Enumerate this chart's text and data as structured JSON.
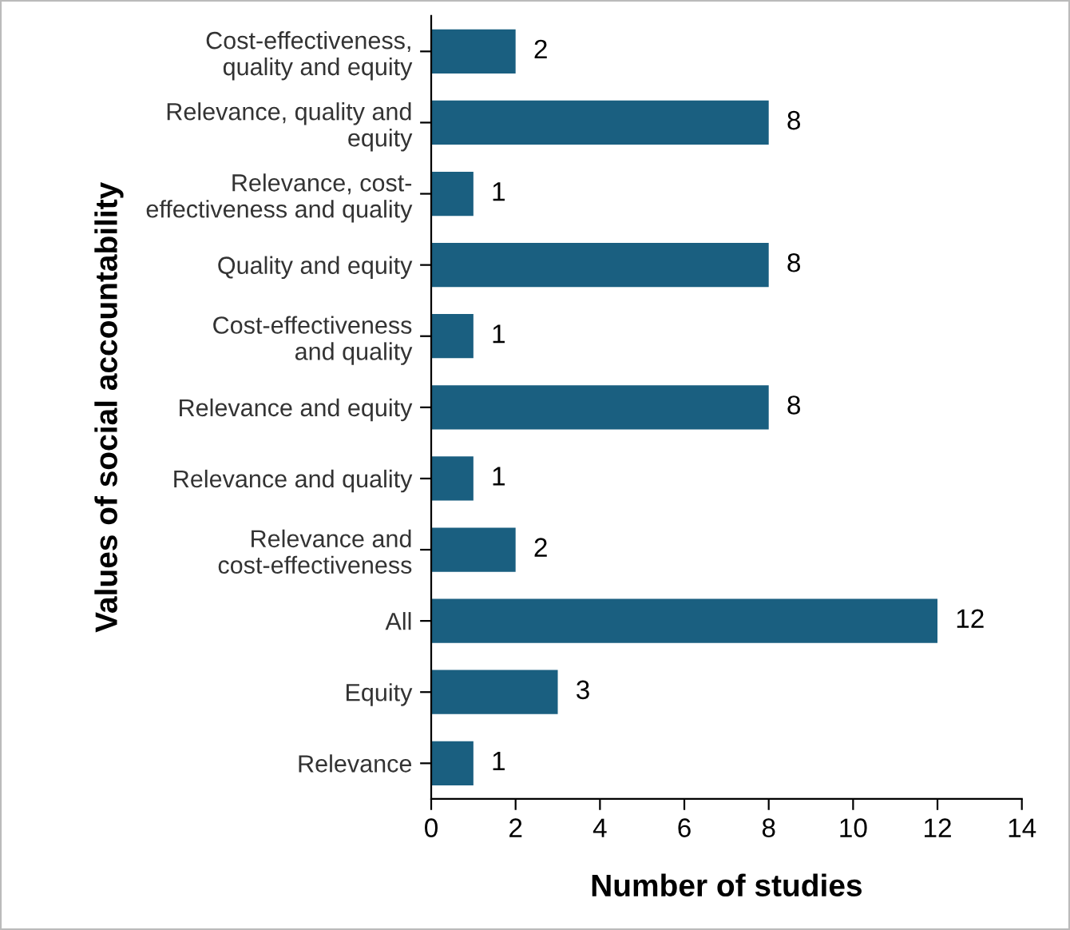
{
  "chart_data": {
    "type": "bar",
    "orientation": "horizontal",
    "xlabel": "Number of studies",
    "ylabel": "Values of social accountability",
    "categories": [
      "Cost-effectiveness,\nquality and equity",
      "Relevance, quality and\nequity",
      "Relevance, cost-\neffectiveness and quality",
      "Quality and equity",
      "Cost-effectiveness\nand quality",
      "Relevance and equity",
      "Relevance and quality",
      "Relevance and\ncost-effectiveness",
      "All",
      "Equity",
      "Relevance"
    ],
    "values": [
      2,
      8,
      1,
      8,
      1,
      8,
      1,
      2,
      12,
      3,
      1
    ],
    "color": "#1a5f80",
    "xlim": [
      0,
      14
    ],
    "xticks": [
      0,
      2,
      4,
      6,
      8,
      10,
      12,
      14
    ],
    "data_labels": true,
    "grid": false,
    "legend": false
  }
}
